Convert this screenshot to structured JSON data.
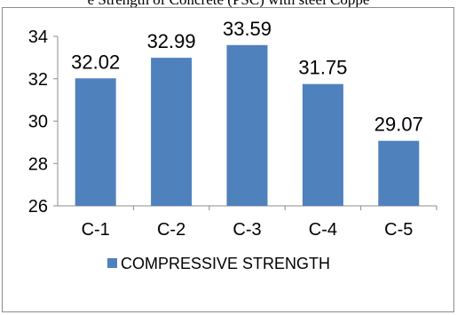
{
  "top_text": "e Strength of Concrete (PSC) with steel Coppe",
  "chart_data": {
    "type": "bar",
    "categories": [
      "C-1",
      "C-2",
      "C-3",
      "C-4",
      "C-5"
    ],
    "series": [
      {
        "name": "COMPRESSIVE STRENGTH",
        "values": [
          32.02,
          32.99,
          33.59,
          31.75,
          29.07
        ]
      }
    ],
    "data_labels": [
      "32.02",
      "32.99",
      "33.59",
      "31.75",
      "29.07"
    ],
    "ylim": [
      26,
      34
    ],
    "yticks": [
      26,
      28,
      30,
      32,
      34
    ],
    "grid": false,
    "legend_position": "bottom",
    "colors": {
      "bar": "#4f81bd",
      "axis": "#8c8c8c"
    }
  }
}
